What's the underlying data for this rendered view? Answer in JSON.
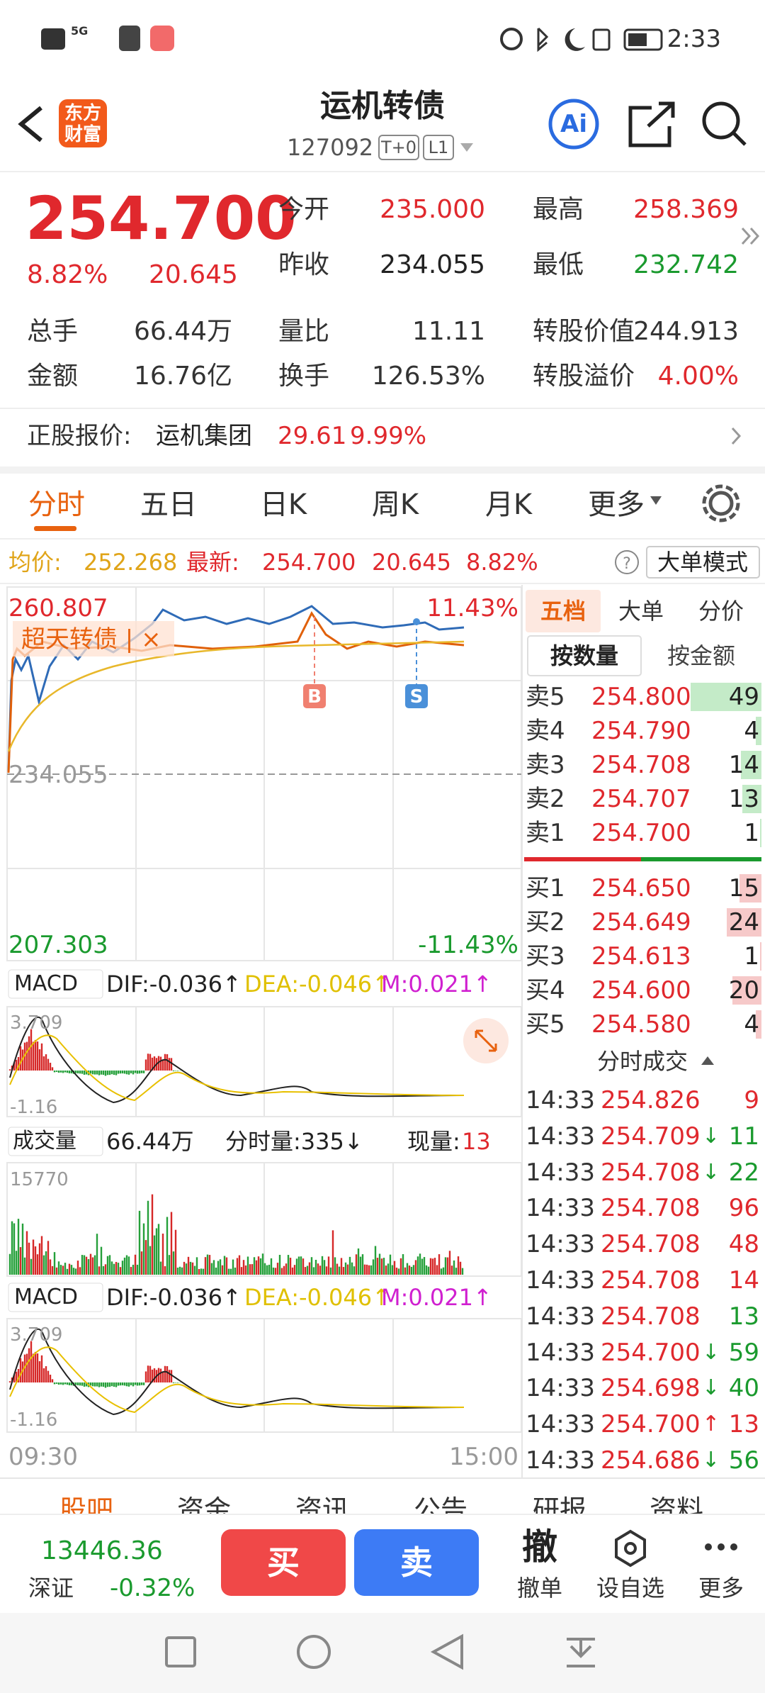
{
  "status_bar": {
    "network": "5G",
    "time": "2:33"
  },
  "header": {
    "logo": "东方财富",
    "title": "运机转债",
    "code": "127092",
    "badges": [
      "T+0",
      "L1"
    ],
    "ai": "Ai"
  },
  "quote": {
    "price": "254.700",
    "change_pct": "8.82%",
    "change": "20.645",
    "fields": [
      {
        "label": "今开",
        "value": "235.000"
      },
      {
        "label": "最高",
        "value": "258.369"
      },
      {
        "label": "昨收",
        "value": "234.055"
      },
      {
        "label": "最低",
        "value": "232.742"
      }
    ],
    "stats": [
      {
        "label": "总手",
        "value": "66.44万"
      },
      {
        "label": "量比",
        "value": "11.11"
      },
      {
        "label": "转股价值",
        "value": "244.913"
      },
      {
        "label": "金额",
        "value": "16.76亿"
      },
      {
        "label": "换手",
        "value": "126.53%"
      },
      {
        "label": "转股溢价",
        "value": "4.00%"
      }
    ]
  },
  "underlying": {
    "label": "正股报价:",
    "name": "运机集团",
    "price": "29.61",
    "change_pct": "9.99%"
  },
  "tabs": [
    "分时",
    "五日",
    "日K",
    "周K",
    "月K",
    "更多"
  ],
  "info": {
    "avg_label": "均价:",
    "avg": "252.268",
    "last_label": "最新:",
    "last": "254.700",
    "change": "20.645",
    "change_pct": "8.82%",
    "mode": "大单模式"
  },
  "chart": {
    "y_top": "260.807",
    "pct_top": "11.43%",
    "y_mid": "234.055",
    "y_bottom": "207.303",
    "pct_bottom": "-11.43%",
    "overlay": "超天转债 | ×",
    "markers": [
      "B",
      "S"
    ],
    "time_start": "09:30",
    "time_end": "15:00"
  },
  "macd": {
    "name": "MACD",
    "dif": "DIF:-0.036↑",
    "dea": "DEA:-0.046↑",
    "m": "M:0.021↑",
    "high": "3.709",
    "low": "-1.16"
  },
  "volume": {
    "name": "成交量",
    "total": "66.44万",
    "minute": "分时量:335↓",
    "current_label": "现量:",
    "current": "13",
    "high": "15770"
  },
  "panel": {
    "tabs": [
      "五档",
      "大单",
      "分价"
    ],
    "modes": [
      "按数量",
      "按金额"
    ],
    "asks": [
      {
        "label": "卖5",
        "price": "254.800",
        "volume": 49
      },
      {
        "label": "卖4",
        "price": "254.790",
        "volume": 4
      },
      {
        "label": "卖3",
        "price": "254.708",
        "volume": 14
      },
      {
        "label": "卖2",
        "price": "254.707",
        "volume": 13
      },
      {
        "label": "卖1",
        "price": "254.700",
        "volume": 1
      }
    ],
    "bids": [
      {
        "label": "买1",
        "price": "254.650",
        "volume": 15
      },
      {
        "label": "买2",
        "price": "254.649",
        "volume": 24
      },
      {
        "label": "买3",
        "price": "254.613",
        "volume": 1
      },
      {
        "label": "买4",
        "price": "254.600",
        "volume": 20
      },
      {
        "label": "买5",
        "price": "254.580",
        "volume": 4
      }
    ],
    "trades_title": "分时成交",
    "trades": [
      {
        "time": "14:33",
        "price": "254.826",
        "arrow": "",
        "volume": 9,
        "color": "#e0282d"
      },
      {
        "time": "14:33",
        "price": "254.709",
        "arrow": "↓",
        "volume": 11,
        "color": "#1a9a2e"
      },
      {
        "time": "14:33",
        "price": "254.708",
        "arrow": "↓",
        "volume": 22,
        "color": "#1a9a2e"
      },
      {
        "time": "14:33",
        "price": "254.708",
        "arrow": "",
        "volume": 96,
        "color": "#e0282d"
      },
      {
        "time": "14:33",
        "price": "254.708",
        "arrow": "",
        "volume": 48,
        "color": "#e0282d"
      },
      {
        "time": "14:33",
        "price": "254.708",
        "arrow": "",
        "volume": 14,
        "color": "#e0282d"
      },
      {
        "time": "14:33",
        "price": "254.708",
        "arrow": "",
        "volume": 13,
        "color": "#1a9a2e"
      },
      {
        "time": "14:33",
        "price": "254.700",
        "arrow": "↓",
        "volume": 59,
        "color": "#1a9a2e"
      },
      {
        "time": "14:33",
        "price": "254.698",
        "arrow": "↓",
        "volume": 40,
        "color": "#1a9a2e"
      },
      {
        "time": "14:33",
        "price": "254.700",
        "arrow": "↑",
        "volume": 13,
        "color": "#e0282d"
      },
      {
        "time": "14:33",
        "price": "254.686",
        "arrow": "↓",
        "volume": 56,
        "color": "#1a9a2e"
      }
    ]
  },
  "bottom_tabs": [
    "股吧",
    "资金",
    "资讯",
    "公告",
    "研报",
    "资料"
  ],
  "index": {
    "value": "13446.36",
    "name": "深证",
    "change": "-0.32%"
  },
  "actions": {
    "buy": "买",
    "sell": "卖",
    "cancel_icon": "撤",
    "cancel": "撤单",
    "watch": "设自选",
    "more": "更多"
  }
}
